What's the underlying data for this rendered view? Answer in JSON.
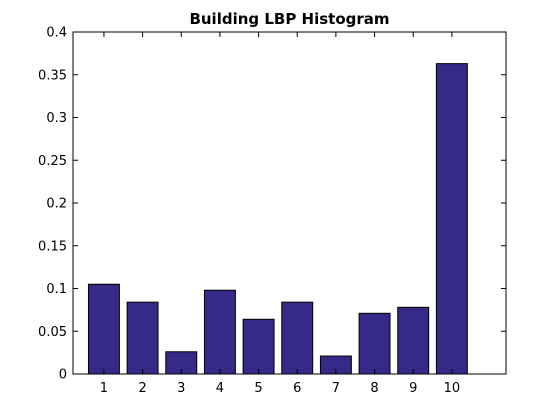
{
  "chart_data": {
    "type": "bar",
    "title": "Building LBP Histogram",
    "xlabel": "",
    "ylabel": "",
    "categories": [
      "1",
      "2",
      "3",
      "4",
      "5",
      "6",
      "7",
      "8",
      "9",
      "10"
    ],
    "values": [
      0.105,
      0.084,
      0.026,
      0.098,
      0.064,
      0.084,
      0.021,
      0.071,
      0.078,
      0.363
    ],
    "xlim": [
      0.2,
      11.4
    ],
    "ylim": [
      0,
      0.4
    ],
    "yticks": [
      0,
      0.05,
      0.1,
      0.15,
      0.2,
      0.25,
      0.3,
      0.35,
      0.4
    ],
    "ytick_labels": [
      "0",
      "0.05",
      "0.1",
      "0.15",
      "0.2",
      "0.25",
      "0.3",
      "0.35",
      "0.4"
    ],
    "bar_width": 0.8,
    "grid": false,
    "bar_color": "#352a87",
    "bar_edge_color": "#000000"
  }
}
